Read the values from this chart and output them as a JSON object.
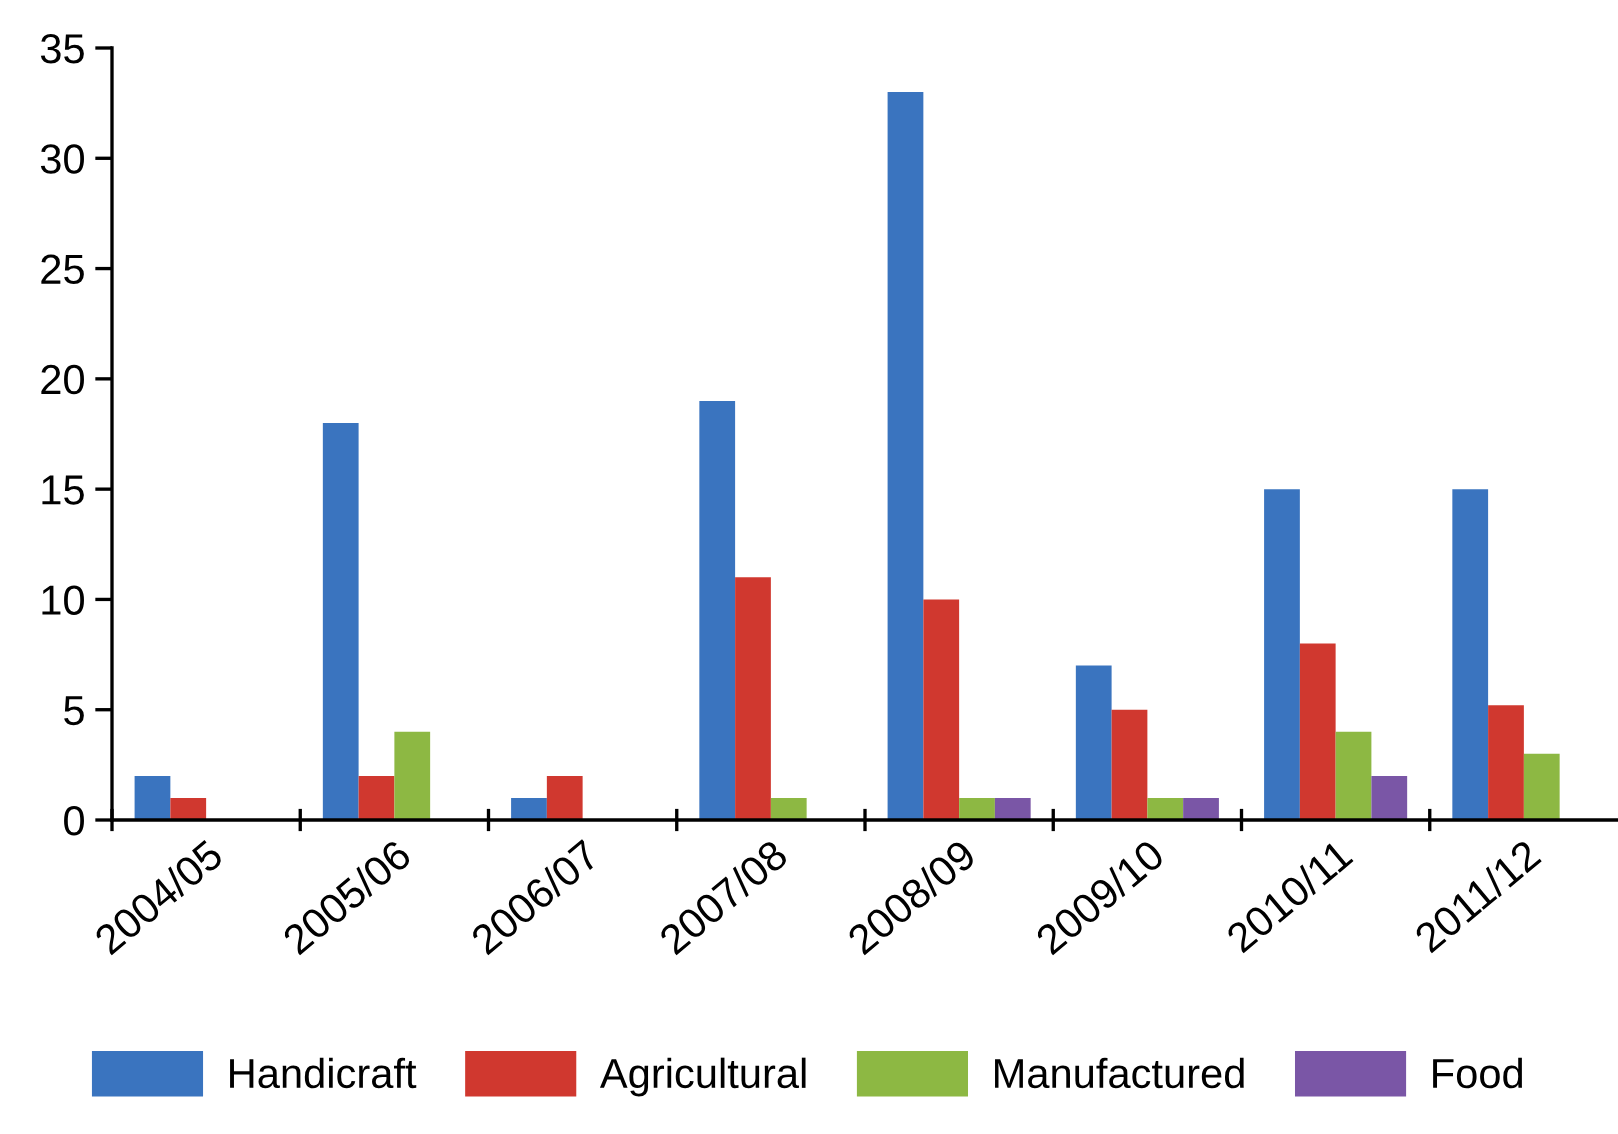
{
  "chart_data": {
    "type": "bar",
    "categories": [
      "2004/05",
      "2005/06",
      "2006/07",
      "2007/08",
      "2008/09",
      "2009/10",
      "2010/11",
      "2011/12"
    ],
    "series": [
      {
        "name": "Handicraft",
        "color": "#3a74bf",
        "values": [
          2,
          18,
          1,
          19,
          33,
          7,
          15,
          15
        ]
      },
      {
        "name": "Agricultural",
        "color": "#d0382f",
        "values": [
          1,
          2,
          2,
          11,
          10,
          5,
          8,
          5.2
        ]
      },
      {
        "name": "Manufactured",
        "color": "#8db843",
        "values": [
          0,
          4,
          0,
          1,
          1,
          1,
          4,
          3
        ]
      },
      {
        "name": "Food",
        "color": "#7a56a6",
        "values": [
          0,
          0,
          0,
          0,
          1,
          1,
          2,
          0
        ]
      }
    ],
    "ylim": [
      0,
      35
    ],
    "yticks": [
      0,
      5,
      10,
      15,
      20,
      25,
      30,
      35
    ],
    "grid": false,
    "legend": "bottom"
  }
}
